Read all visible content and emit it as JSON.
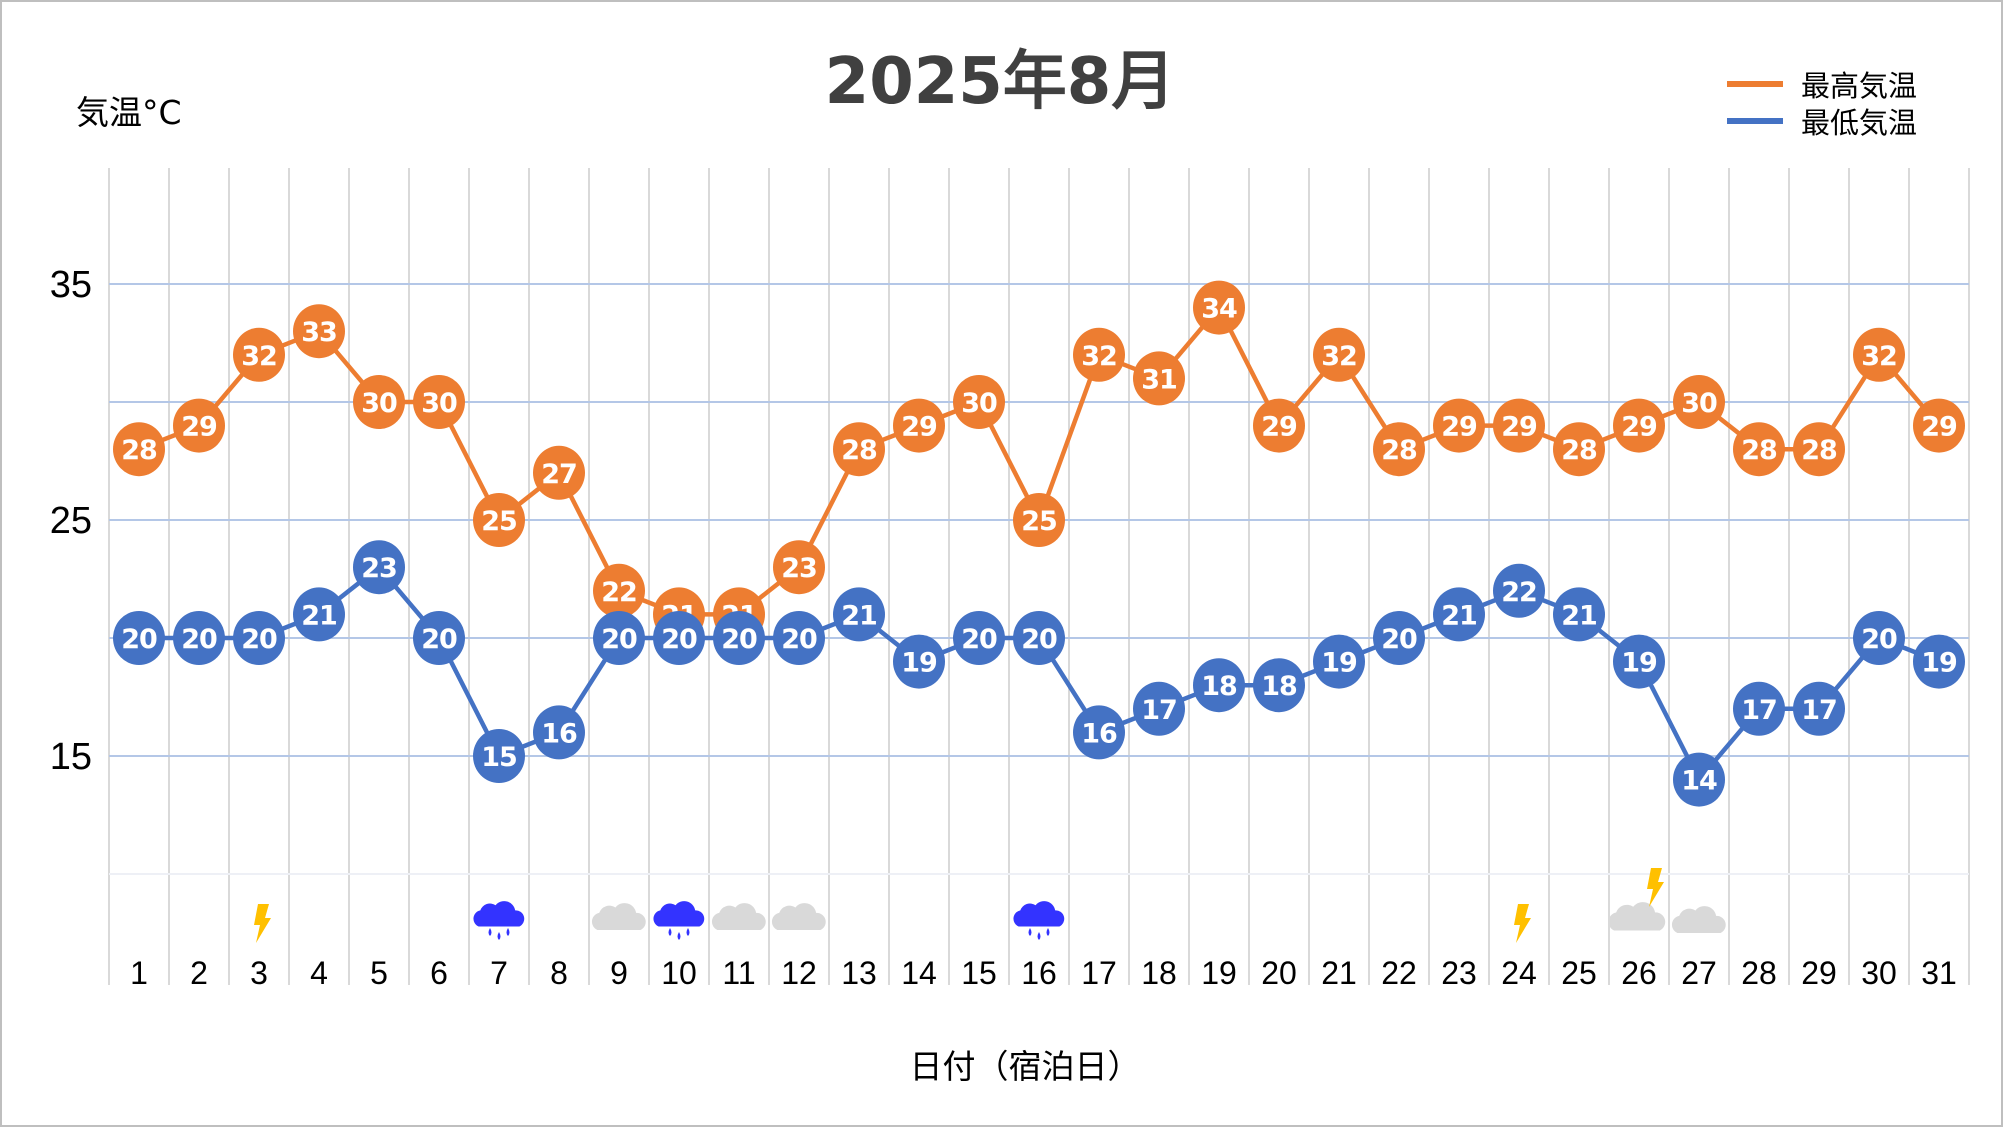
{
  "chart_data": {
    "type": "line",
    "title": "2025年8月",
    "xlabel": "日付（宿泊日）",
    "ylabel": "気温°C",
    "ylim": [
      10,
      40
    ],
    "yticks": [
      35,
      25,
      15
    ],
    "ygrid": [
      35,
      30,
      25,
      20,
      15,
      10
    ],
    "grid": true,
    "legend_position": "top-right",
    "categories": [
      "1",
      "2",
      "3",
      "4",
      "5",
      "6",
      "7",
      "8",
      "9",
      "10",
      "11",
      "12",
      "13",
      "14",
      "15",
      "16",
      "17",
      "18",
      "19",
      "20",
      "21",
      "22",
      "23",
      "24",
      "25",
      "26",
      "27",
      "28",
      "29",
      "30",
      "31"
    ],
    "series": [
      {
        "name": "最高気温",
        "color": "#ED7D31",
        "values": [
          28,
          29,
          32,
          33,
          30,
          30,
          25,
          27,
          22,
          21,
          21,
          23,
          28,
          29,
          30,
          25,
          32,
          31,
          34,
          29,
          32,
          28,
          29,
          29,
          28,
          29,
          30,
          28,
          28,
          32,
          29
        ]
      },
      {
        "name": "最低気温",
        "color": "#4472C4",
        "values": [
          20,
          20,
          20,
          21,
          23,
          20,
          15,
          16,
          20,
          20,
          20,
          20,
          21,
          19,
          20,
          20,
          16,
          17,
          18,
          18,
          19,
          20,
          21,
          22,
          21,
          19,
          14,
          17,
          17,
          20,
          19
        ]
      }
    ],
    "weather": [
      {
        "day": 3,
        "icon": "thunder-icon"
      },
      {
        "day": 7,
        "icon": "rain-icon"
      },
      {
        "day": 9,
        "icon": "cloud-icon"
      },
      {
        "day": 10,
        "icon": "rain-icon"
      },
      {
        "day": 11,
        "icon": "cloud-icon"
      },
      {
        "day": 12,
        "icon": "cloud-icon"
      },
      {
        "day": 16,
        "icon": "rain-icon"
      },
      {
        "day": 24,
        "icon": "thunder-icon"
      },
      {
        "day": 26,
        "icon": "cloud-thunder-icon"
      },
      {
        "day": 27,
        "icon": "cloud-icon"
      }
    ],
    "colors": {
      "rain": "#3333FF",
      "cloud": "#D9D9D9",
      "thunder": "#FFC000",
      "vgrid": "#D9D9D9",
      "hgrid": "#B4C7E7"
    }
  }
}
